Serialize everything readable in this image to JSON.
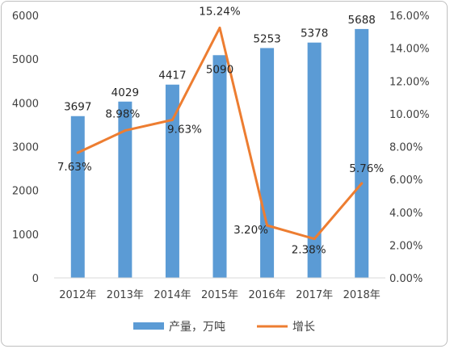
{
  "chart_data": {
    "type": "bar",
    "categories": [
      "2012年",
      "2013年",
      "2014年",
      "2015年",
      "2016年",
      "2017年",
      "2018年"
    ],
    "series": [
      {
        "name": "产量，万吨",
        "type": "bar",
        "axis": "left",
        "values": [
          3697,
          4029,
          4417,
          5090,
          5253,
          5378,
          5688
        ],
        "labels": [
          "3697",
          "4029",
          "4417",
          "5090",
          "5253",
          "5378",
          "5688"
        ],
        "color": "#5b9bd5"
      },
      {
        "name": "增长",
        "type": "line",
        "axis": "right",
        "values": [
          7.63,
          8.98,
          9.63,
          15.24,
          3.2,
          2.38,
          5.76
        ],
        "labels": [
          "7.63%",
          "8.98%",
          "9.63%",
          "15.24%",
          "3.20%",
          "2.38%",
          "5.76%"
        ],
        "color": "#ed7d31"
      }
    ],
    "y_left": {
      "min": 0,
      "max": 6000,
      "ticks": [
        "0",
        "1000",
        "2000",
        "3000",
        "4000",
        "5000",
        "6000"
      ]
    },
    "y_right": {
      "min": 0,
      "max": 16,
      "ticks": [
        "0.00%",
        "2.00%",
        "4.00%",
        "6.00%",
        "8.00%",
        "10.00%",
        "12.00%",
        "14.00%",
        "16.00%"
      ]
    },
    "grid": false,
    "legend": "bottom"
  }
}
